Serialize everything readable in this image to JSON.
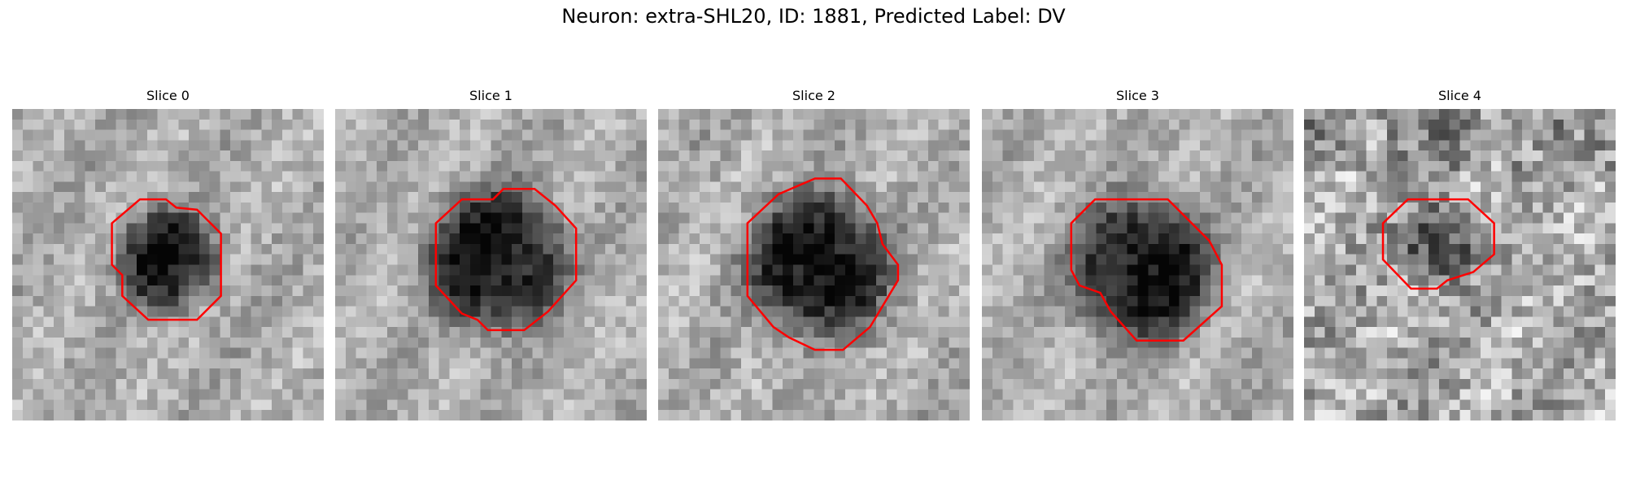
{
  "title": "Neuron: extra-SHL20, ID: 1881, Predicted Label: DV",
  "panels": [
    {
      "title": "Slice 0"
    },
    {
      "title": "Slice 1"
    },
    {
      "title": "Slice 2"
    },
    {
      "title": "Slice 3"
    },
    {
      "title": "Slice 4"
    }
  ]
}
